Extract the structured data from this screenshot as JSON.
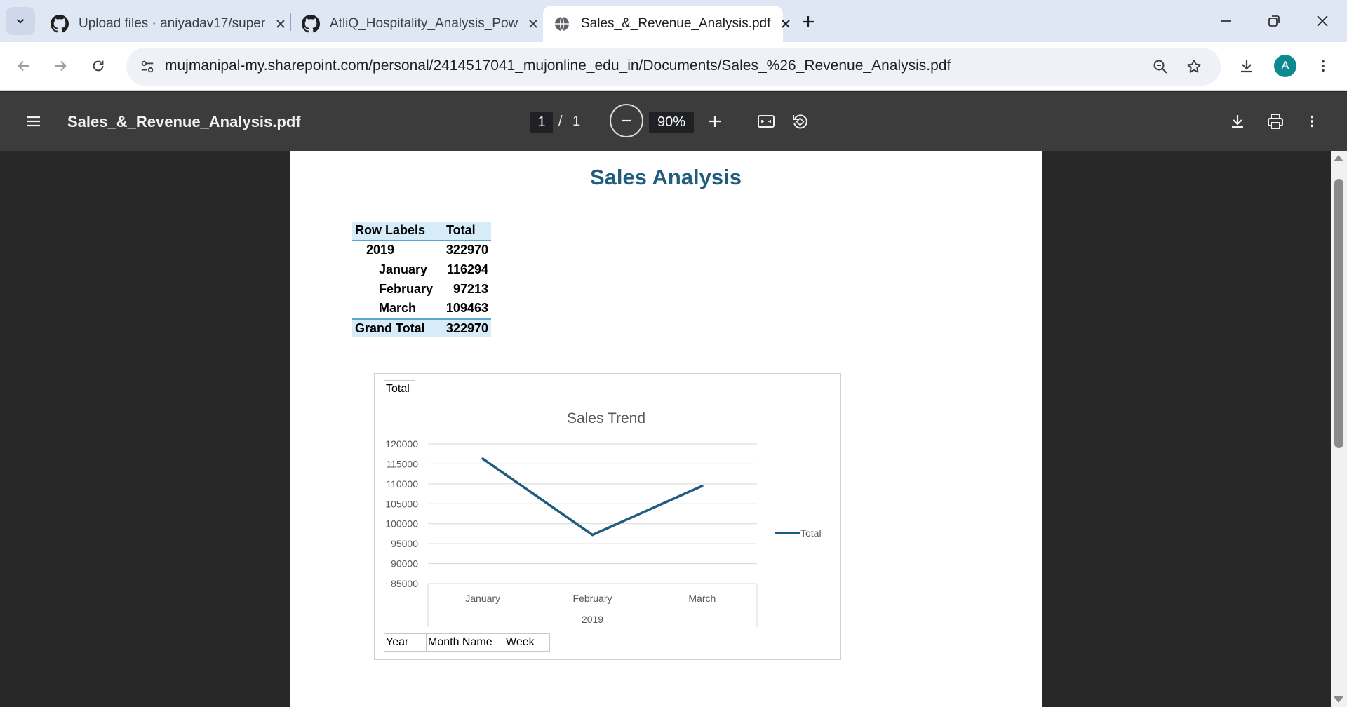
{
  "browser": {
    "tabs": [
      {
        "title": "Upload files · aniyadav17/super",
        "favicon": "github-icon",
        "active": false
      },
      {
        "title": "AtliQ_Hospitality_Analysis_Pow",
        "favicon": "github-icon",
        "active": false
      },
      {
        "title": "Sales_&_Revenue_Analysis.pdf",
        "favicon": "globe-icon",
        "active": true
      }
    ],
    "url": "mujmanipal-my.sharepoint.com/personal/2414517041_mujonline_edu_in/Documents/Sales_%26_Revenue_Analysis.pdf",
    "profile_initial": "A",
    "profile_color": "#0c8a8f"
  },
  "pdf_viewer": {
    "file_title": "Sales_&_Revenue_Analysis.pdf",
    "current_page": "1",
    "page_separator": "/",
    "total_pages": "1",
    "zoom": "90%"
  },
  "document": {
    "title": "Sales Analysis",
    "title_color": "#1f5c7e",
    "pivot": {
      "header": {
        "label": "Row Labels",
        "value": "Total"
      },
      "year": {
        "label": "2019",
        "value": "322970"
      },
      "months": [
        {
          "label": "January",
          "value": "116294"
        },
        {
          "label": "February",
          "value": "97213"
        },
        {
          "label": "March",
          "value": "109463"
        }
      ],
      "grand_total": {
        "label": "Grand Total",
        "value": "322970"
      }
    },
    "chart_fields": {
      "value_field": "Total",
      "axis_fields": [
        "Year",
        "Month Name",
        "Week"
      ]
    }
  },
  "chart_data": {
    "type": "line",
    "title": "Sales Trend",
    "categories": [
      "January",
      "February",
      "March"
    ],
    "category_group": "2019",
    "series": [
      {
        "name": "Total",
        "values": [
          116294,
          97213,
          109463
        ],
        "color": "#1f5c7e"
      }
    ],
    "ylim": [
      85000,
      120000
    ],
    "yticks": [
      "120000",
      "115000",
      "110000",
      "105000",
      "100000",
      "95000",
      "90000",
      "85000"
    ],
    "grid": true,
    "legend": "right"
  }
}
